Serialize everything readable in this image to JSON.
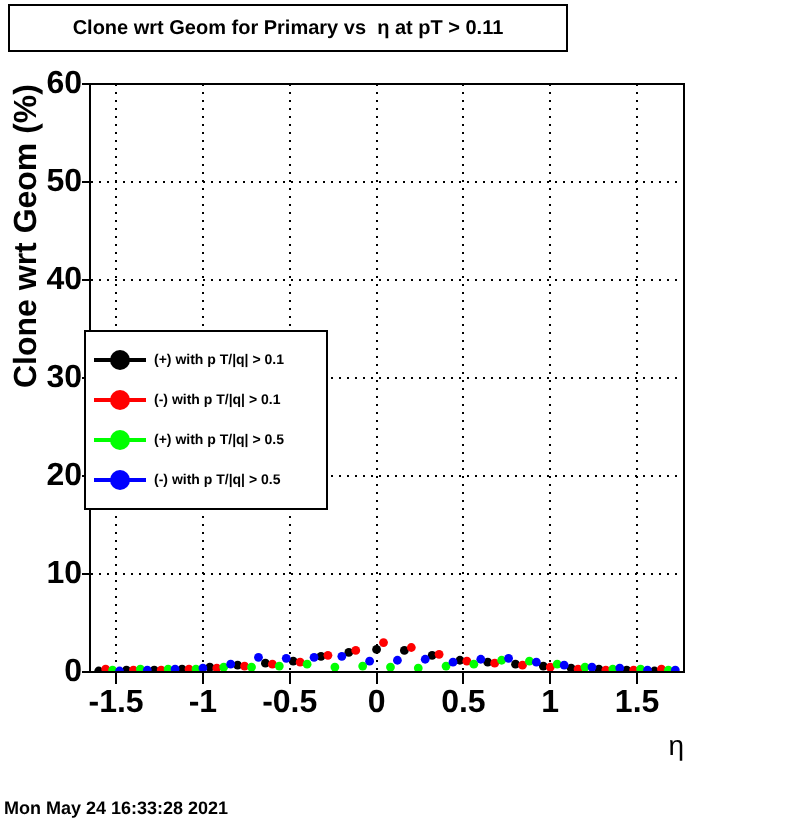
{
  "chart_data": {
    "type": "scatter",
    "title": "Clone wrt Geom for Primary vs  η at pT > 0.11",
    "xlabel": "η",
    "ylabel": "Clone wrt Geom (%)",
    "annotations": [
      "Mon May 24 16:33:28 2021"
    ],
    "series": [
      {
        "name": "(+) with p T/|q| > 0.1",
        "color": "#000000",
        "x": [
          -1.6,
          -1.44,
          -1.28,
          -1.12,
          -0.96,
          -0.8,
          -0.64,
          -0.48,
          -0.32,
          -0.16,
          0,
          0.16,
          0.32,
          0.48,
          0.64,
          0.8,
          0.96,
          1.12,
          1.28,
          1.44,
          1.6
        ],
        "values": [
          0.1,
          0.2,
          0.2,
          0.3,
          0.5,
          0.7,
          0.9,
          1.1,
          1.6,
          2.0,
          2.3,
          2.2,
          1.7,
          1.2,
          1.0,
          0.8,
          0.6,
          0.4,
          0.3,
          0.2,
          0.1
        ]
      },
      {
        "name": "(-) with p T/|q| > 0.1",
        "color": "#ff0000",
        "x": [
          -1.56,
          -1.4,
          -1.24,
          -1.08,
          -0.92,
          -0.76,
          -0.6,
          -0.44,
          -0.28,
          -0.12,
          0.04,
          0.2,
          0.36,
          0.52,
          0.68,
          0.84,
          1,
          1.16,
          1.32,
          1.48,
          1.64
        ],
        "values": [
          0.3,
          0.2,
          0.2,
          0.3,
          0.4,
          0.6,
          0.8,
          1.0,
          1.7,
          2.2,
          3.0,
          2.5,
          1.8,
          1.1,
          0.9,
          0.7,
          0.5,
          0.3,
          0.2,
          0.2,
          0.3
        ]
      },
      {
        "name": "(+) with p T/|q| > 0.5",
        "color": "#00ff00",
        "x": [
          -1.52,
          -1.36,
          -1.2,
          -1.04,
          -0.88,
          -0.72,
          -0.56,
          -0.4,
          -0.24,
          -0.08,
          0.08,
          0.24,
          0.4,
          0.56,
          0.72,
          0.88,
          1.04,
          1.2,
          1.36,
          1.52,
          1.68
        ],
        "values": [
          0.2,
          0.3,
          0.3,
          0.3,
          0.5,
          0.5,
          0.6,
          0.8,
          0.5,
          0.6,
          0.5,
          0.4,
          0.6,
          0.8,
          1.2,
          1.1,
          0.8,
          0.5,
          0.3,
          0.3,
          0.2
        ]
      },
      {
        "name": "(-) with p T/|q| > 0.5",
        "color": "#0000ff",
        "x": [
          -1.48,
          -1.32,
          -1.16,
          -1,
          -0.84,
          -0.68,
          -0.52,
          -0.36,
          -0.2,
          -0.04,
          0.12,
          0.28,
          0.44,
          0.6,
          0.76,
          0.92,
          1.08,
          1.24,
          1.4,
          1.56,
          1.72
        ],
        "values": [
          0.1,
          0.2,
          0.3,
          0.4,
          0.8,
          1.5,
          1.4,
          1.5,
          1.6,
          1.1,
          1.2,
          1.3,
          1.0,
          1.3,
          1.4,
          1.0,
          0.7,
          0.5,
          0.4,
          0.2,
          0.2
        ]
      }
    ],
    "xlim": [
      -1.65,
      1.77
    ],
    "xticks": [
      -1.5,
      -1,
      -0.5,
      0,
      0.5,
      1,
      1.5
    ],
    "ylim": [
      0,
      60
    ],
    "yticks": [
      0,
      10,
      20,
      30,
      40,
      50,
      60
    ],
    "grid": true,
    "legend": "left",
    "marker": "circle"
  }
}
